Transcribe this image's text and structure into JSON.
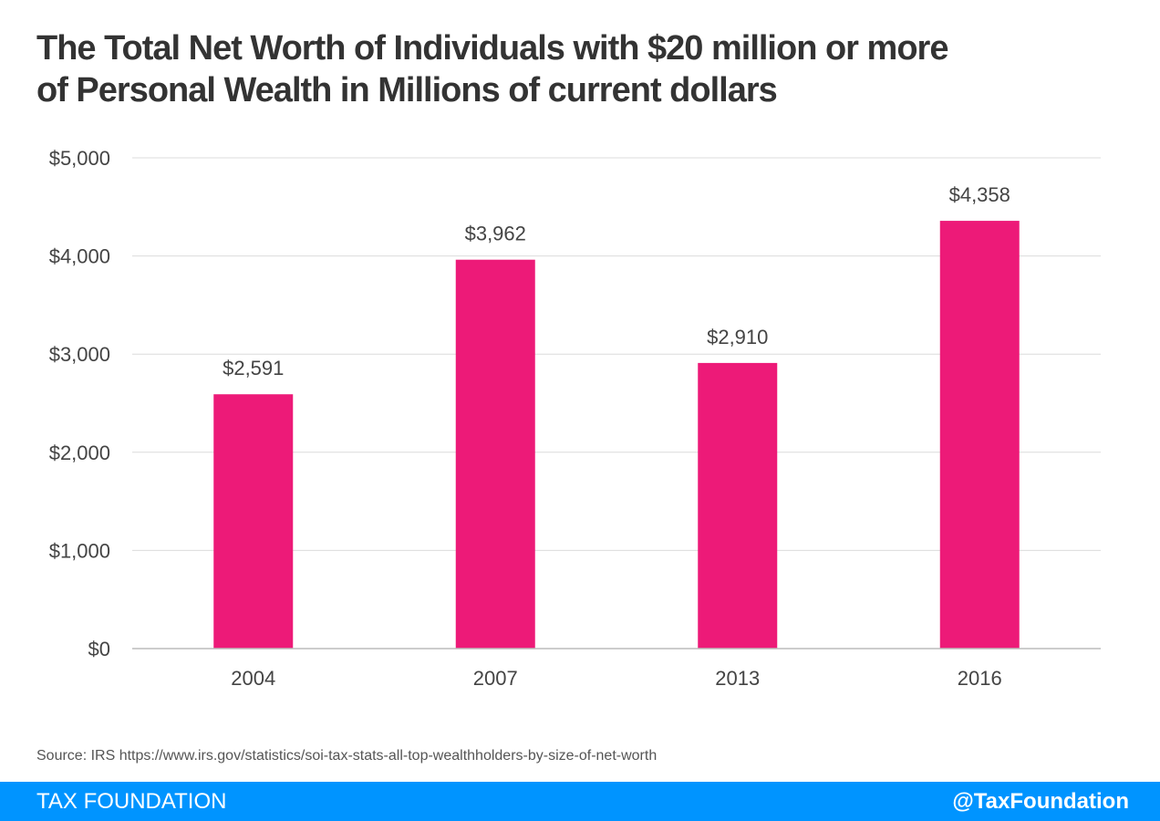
{
  "chart_data": {
    "type": "bar",
    "title_lines": [
      "The Total Net Worth of Individuals with $20 million or more",
      "of Personal Wealth in Millions of current dollars"
    ],
    "categories": [
      "2004",
      "2007",
      "2013",
      "2016"
    ],
    "values": [
      2591,
      3962,
      2910,
      4358
    ],
    "value_labels": [
      "$2,591",
      "$3,962",
      "$2,910",
      "$4,358"
    ],
    "y_ticks": [
      0,
      1000,
      2000,
      3000,
      4000,
      5000
    ],
    "y_tick_labels": [
      "$0",
      "$1,000",
      "$2,000",
      "$3,000",
      "$4,000",
      "$5,000"
    ],
    "ylim": [
      0,
      5000
    ],
    "xlabel": "",
    "ylabel": "",
    "grid": true,
    "bar_color": "#ed1a78"
  },
  "source": "Source: IRS https://www.irs.gov/statistics/soi-tax-stats-all-top-wealthholders-by-size-of-net-worth",
  "footer": {
    "brand": "TAX FOUNDATION",
    "handle": "@TaxFoundation",
    "color": "#0094ff"
  }
}
